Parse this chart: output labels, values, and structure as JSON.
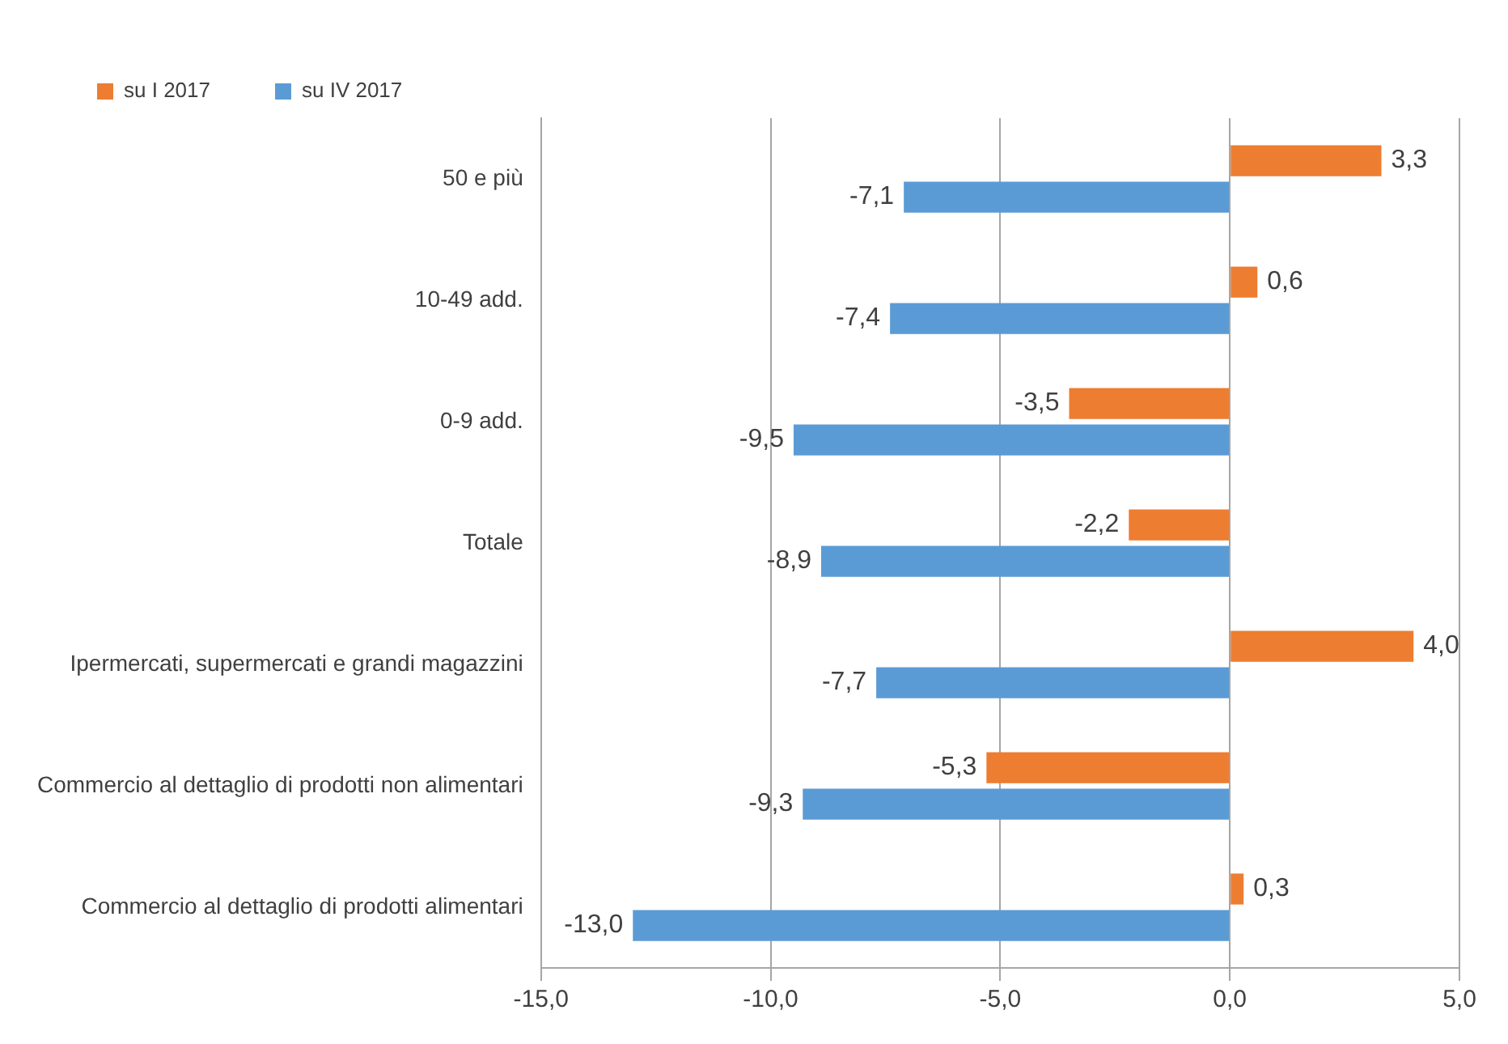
{
  "chart_data": {
    "type": "bar",
    "orientation": "horizontal",
    "categories": [
      "50 e più",
      "10-49 add.",
      "0-9 add.",
      "Totale",
      "Ipermercati, supermercati e grandi magazzini",
      "Commercio al dettaglio di prodotti non alimentari",
      "Commercio al dettaglio di prodotti alimentari"
    ],
    "series": [
      {
        "name": "su I 2017",
        "color": "#ed7d31",
        "values": [
          3.3,
          0.6,
          -3.5,
          -2.2,
          4.0,
          -5.3,
          0.3
        ],
        "value_labels": [
          "3,3",
          "0,6",
          "-3,5",
          "-2,2",
          "4,0",
          "-5,3",
          "0,3"
        ]
      },
      {
        "name": "su IV 2017",
        "color": "#5b9bd5",
        "values": [
          -7.1,
          -7.4,
          -9.5,
          -8.9,
          -7.7,
          -9.3,
          -13.0
        ],
        "value_labels": [
          "-7,1",
          "-7,4",
          "-9,5",
          "-8,9",
          "-7,7",
          "-9,3",
          "-13,0"
        ]
      }
    ],
    "xlim": [
      -15,
      5
    ],
    "xticks": [
      {
        "value": -15,
        "label": "-15,0"
      },
      {
        "value": -10,
        "label": "-10,0"
      },
      {
        "value": -5,
        "label": "-5,0"
      },
      {
        "value": 0,
        "label": "0,0"
      },
      {
        "value": 5,
        "label": "5,0"
      }
    ],
    "grid": "x",
    "legend": "left"
  }
}
